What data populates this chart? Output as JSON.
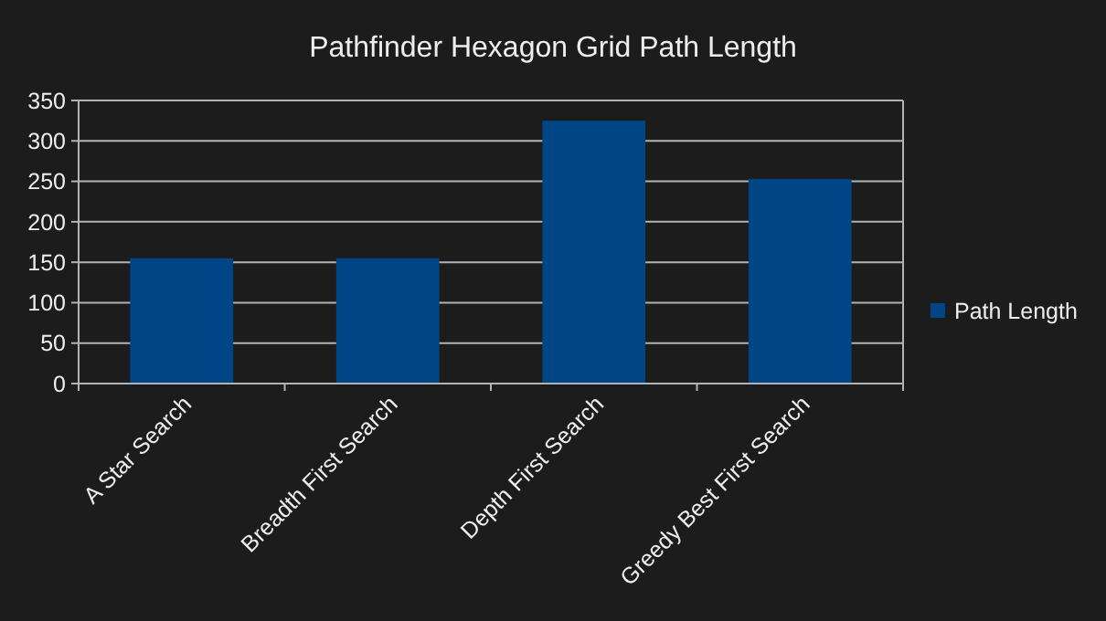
{
  "chart_data": {
    "type": "bar",
    "title": "Pathfinder Hexagon Grid Path Length",
    "categories": [
      "A Star Search",
      "Breadth First Search",
      "Depth First Search",
      "Greedy Best First Search"
    ],
    "series": [
      {
        "name": "Path Length",
        "color": "#004586",
        "values": [
          155,
          155,
          325,
          253
        ]
      }
    ],
    "ylim": [
      0,
      350
    ],
    "yticks": [
      0,
      50,
      100,
      150,
      200,
      250,
      300,
      350
    ],
    "grid": "y",
    "legend": "right"
  }
}
